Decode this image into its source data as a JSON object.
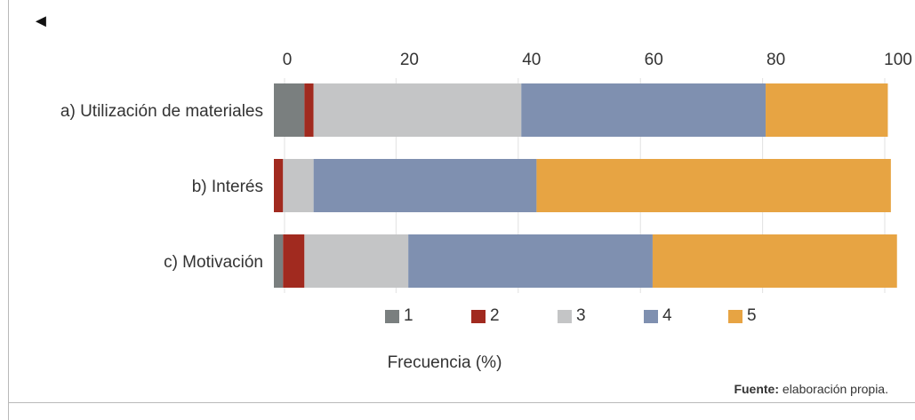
{
  "nav": {
    "back_icon": "◄"
  },
  "chart_data": {
    "type": "bar",
    "orientation": "horizontal",
    "stacked": true,
    "categories": [
      "a) Utilización de materiales",
      "b) Interés",
      "c) Motivación"
    ],
    "series": [
      {
        "name": "1",
        "color": "#7a7f7f",
        "values": [
          5,
          0,
          1.5
        ]
      },
      {
        "name": "2",
        "color": "#a12a1f",
        "values": [
          1.5,
          1.5,
          3.5
        ]
      },
      {
        "name": "3",
        "color": "#c4c5c6",
        "values": [
          34,
          5,
          17
        ]
      },
      {
        "name": "4",
        "color": "#7f90b0",
        "values": [
          40,
          36.5,
          40
        ]
      },
      {
        "name": "5",
        "color": "#e7a443",
        "values": [
          20,
          58,
          40
        ]
      }
    ],
    "xlim": [
      0,
      100
    ],
    "xticks": [
      0,
      20,
      40,
      60,
      80,
      100
    ],
    "xlabel": "Frecuencia (%)",
    "grid": "vertical",
    "legend_position": "bottom"
  },
  "source": {
    "label": "Fuente:",
    "text": " elaboración propia."
  }
}
